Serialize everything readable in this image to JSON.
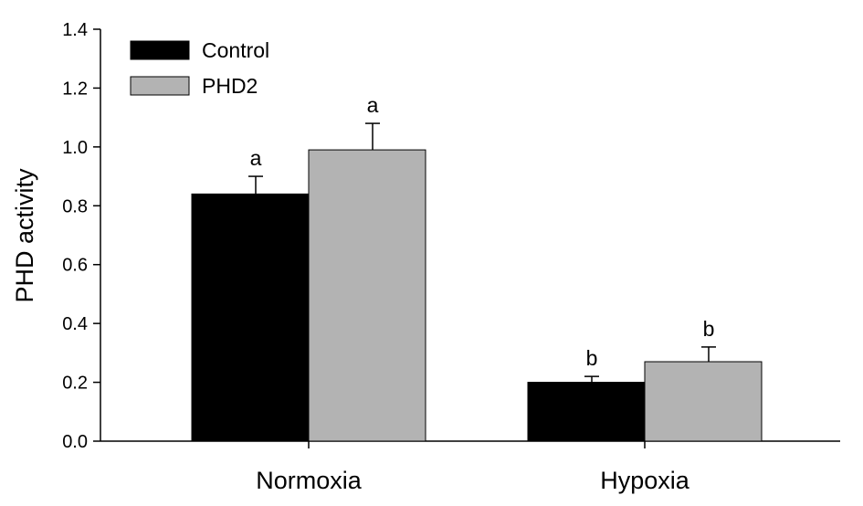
{
  "chart_data": {
    "type": "bar",
    "ylabel": "PHD activity",
    "xlabel": "",
    "ylim": [
      0,
      1.4
    ],
    "yticks": [
      "0.0",
      "0.2",
      "0.4",
      "0.6",
      "0.8",
      "1.0",
      "1.2",
      "1.4"
    ],
    "categories": [
      "Normoxia",
      "Hypoxia"
    ],
    "series": [
      {
        "name": "Control",
        "color": "#000000",
        "values": [
          0.84,
          0.2
        ],
        "errors": [
          0.06,
          0.02
        ],
        "labels": [
          "a",
          "b"
        ]
      },
      {
        "name": "PHD2",
        "color": "#b3b3b3",
        "values": [
          0.99,
          0.27
        ],
        "errors": [
          0.09,
          0.05
        ],
        "labels": [
          "a",
          "b"
        ]
      }
    ],
    "legend_position": "top-left",
    "grid": false
  }
}
